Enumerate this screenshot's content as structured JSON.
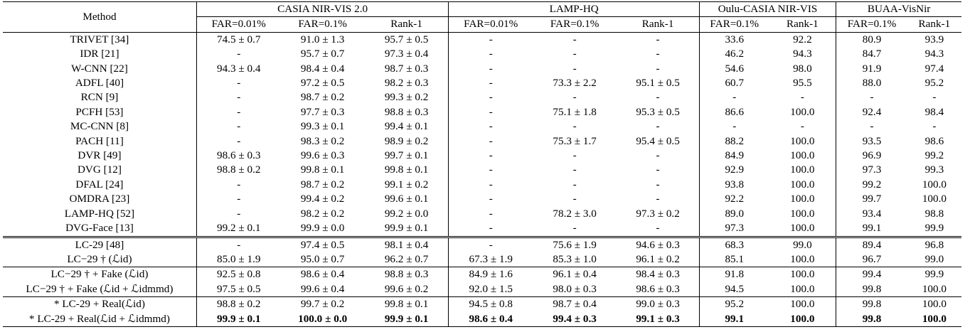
{
  "header": {
    "method_label": "Method",
    "groups": [
      {
        "name": "CASIA NIR-VIS 2.0",
        "cols": [
          "FAR=0.01%",
          "FAR=0.1%",
          "Rank-1"
        ]
      },
      {
        "name": "LAMP-HQ",
        "cols": [
          "FAR=0.01%",
          "FAR=0.1%",
          "Rank-1"
        ]
      },
      {
        "name": "Oulu-CASIA NIR-VIS",
        "cols": [
          "FAR=0.1%",
          "Rank-1"
        ]
      },
      {
        "name": "BUAA-VisNir",
        "cols": [
          "FAR=0.1%",
          "Rank-1"
        ]
      }
    ]
  },
  "sections": [
    {
      "rows": [
        {
          "method": "TRIVET [34]",
          "cells": [
            "74.5 ± 0.7",
            "91.0 ± 1.3",
            "95.7 ± 0.5",
            "-",
            "-",
            "-",
            "33.6",
            "92.2",
            "80.9",
            "93.9"
          ]
        },
        {
          "method": "IDR [21]",
          "cells": [
            "-",
            "95.7 ± 0.7",
            "97.3 ± 0.4",
            "-",
            "-",
            "-",
            "46.2",
            "94.3",
            "84.7",
            "94.3"
          ]
        },
        {
          "method": "W-CNN [22]",
          "cells": [
            "94.3 ± 0.4",
            "98.4 ± 0.4",
            "98.7 ± 0.3",
            "-",
            "-",
            "-",
            "54.6",
            "98.0",
            "91.9",
            "97.4"
          ]
        },
        {
          "method": "ADFL [40]",
          "cells": [
            "-",
            "97.2 ± 0.5",
            "98.2 ± 0.3",
            "-",
            "73.3 ± 2.2",
            "95.1 ± 0.5",
            "60.7",
            "95.5",
            "88.0",
            "95.2"
          ]
        },
        {
          "method": "RCN [9]",
          "cells": [
            "-",
            "98.7 ± 0.2",
            "99.3 ± 0.2",
            "-",
            "-",
            "-",
            "-",
            "-",
            "-",
            "-"
          ]
        },
        {
          "method": "PCFH [53]",
          "cells": [
            "-",
            "97.7 ± 0.3",
            "98.8 ± 0.3",
            "-",
            "75.1 ± 1.8",
            "95.3 ± 0.5",
            "86.6",
            "100.0",
            "92.4",
            "98.4"
          ]
        },
        {
          "method": "MC-CNN [8]",
          "cells": [
            "-",
            "99.3 ± 0.1",
            "99.4 ± 0.1",
            "-",
            "-",
            "-",
            "-",
            "-",
            "-",
            "-"
          ]
        },
        {
          "method": "PACH [11]",
          "cells": [
            "-",
            "98.3 ± 0.2",
            "98.9 ± 0.2",
            "-",
            "75.3 ± 1.7",
            "95.4 ± 0.5",
            "88.2",
            "100.0",
            "93.5",
            "98.6"
          ]
        },
        {
          "method": "DVR [49]",
          "cells": [
            "98.6 ± 0.3",
            "99.6 ± 0.3",
            "99.7 ± 0.1",
            "-",
            "-",
            "-",
            "84.9",
            "100.0",
            "96.9",
            "99.2"
          ]
        },
        {
          "method": "DVG [12]",
          "cells": [
            "98.8 ± 0.2",
            "99.8 ± 0.1",
            "99.8 ± 0.1",
            "-",
            "-",
            "-",
            "92.9",
            "100.0",
            "97.3",
            "99.3"
          ]
        },
        {
          "method": "DFAL [24]",
          "cells": [
            "-",
            "98.7 ± 0.2",
            "99.1 ± 0.2",
            "-",
            "-",
            "-",
            "93.8",
            "100.0",
            "99.2",
            "100.0"
          ]
        },
        {
          "method": "OMDRA [23]",
          "cells": [
            "-",
            "99.4 ± 0.2",
            "99.6 ± 0.1",
            "-",
            "-",
            "-",
            "92.2",
            "100.0",
            "99.7",
            "100.0"
          ]
        },
        {
          "method": "LAMP-HQ [52]",
          "cells": [
            "-",
            "98.2 ± 0.2",
            "99.2 ± 0.0",
            "-",
            "78.2 ± 3.0",
            "97.3 ± 0.2",
            "89.0",
            "100.0",
            "93.4",
            "98.8"
          ]
        },
        {
          "method": "DVG-Face [13]",
          "cells": [
            "99.2 ± 0.1",
            "99.9 ± 0.0",
            "99.9 ± 0.1",
            "-",
            "-",
            "-",
            "97.3",
            "100.0",
            "99.1",
            "99.9"
          ]
        }
      ]
    },
    {
      "rows": [
        {
          "method": "LC-29 [48]",
          "cells": [
            "-",
            "97.4 ± 0.5",
            "98.1 ± 0.4",
            "-",
            "75.6 ± 1.9",
            "94.6 ± 0.3",
            "68.3",
            "99.0",
            "89.4",
            "96.8"
          ]
        },
        {
          "method": "LC−29 † (ℒid)",
          "cells": [
            "85.0 ± 1.9",
            "95.0 ± 0.7",
            "96.2 ± 0.7",
            "67.3 ± 1.9",
            "85.3 ± 1.0",
            "96.1 ± 0.2",
            "85.1",
            "100.0",
            "96.7",
            "99.0"
          ]
        }
      ]
    },
    {
      "rows": [
        {
          "method": "LC−29 † + Fake (ℒid)",
          "cells": [
            "92.5 ± 0.8",
            "98.6 ± 0.4",
            "98.8 ± 0.3",
            "84.9 ± 1.6",
            "96.1 ± 0.4",
            "98.4 ± 0.3",
            "91.8",
            "100.0",
            "99.4",
            "99.9"
          ]
        },
        {
          "method": "LC−29 † + Fake (ℒid + ℒidmmd)",
          "cells": [
            "97.5 ± 0.5",
            "99.6 ± 0.4",
            "99.6 ± 0.2",
            "92.0 ± 1.5",
            "98.0 ± 0.3",
            "98.6 ± 0.3",
            "94.5",
            "100.0",
            "99.8",
            "100.0"
          ]
        }
      ]
    },
    {
      "rows": [
        {
          "method": "* LC-29 + Real(ℒid)",
          "cells": [
            "98.8 ± 0.2",
            "99.7 ± 0.2",
            "99.8 ± 0.1",
            "94.5 ± 0.8",
            "98.7 ± 0.4",
            "99.0 ± 0.3",
            "95.2",
            "100.0",
            "99.8",
            "100.0"
          ]
        },
        {
          "method": "* LC-29 + Real(ℒid + ℒidmmd)",
          "bold": true,
          "cells": [
            "99.9 ± 0.1",
            "100.0 ± 0.0",
            "99.9 ± 0.1",
            "98.6 ± 0.4",
            "99.4 ± 0.3",
            "99.1 ± 0.3",
            "99.1",
            "100.0",
            "99.8",
            "100.0"
          ]
        }
      ]
    }
  ]
}
